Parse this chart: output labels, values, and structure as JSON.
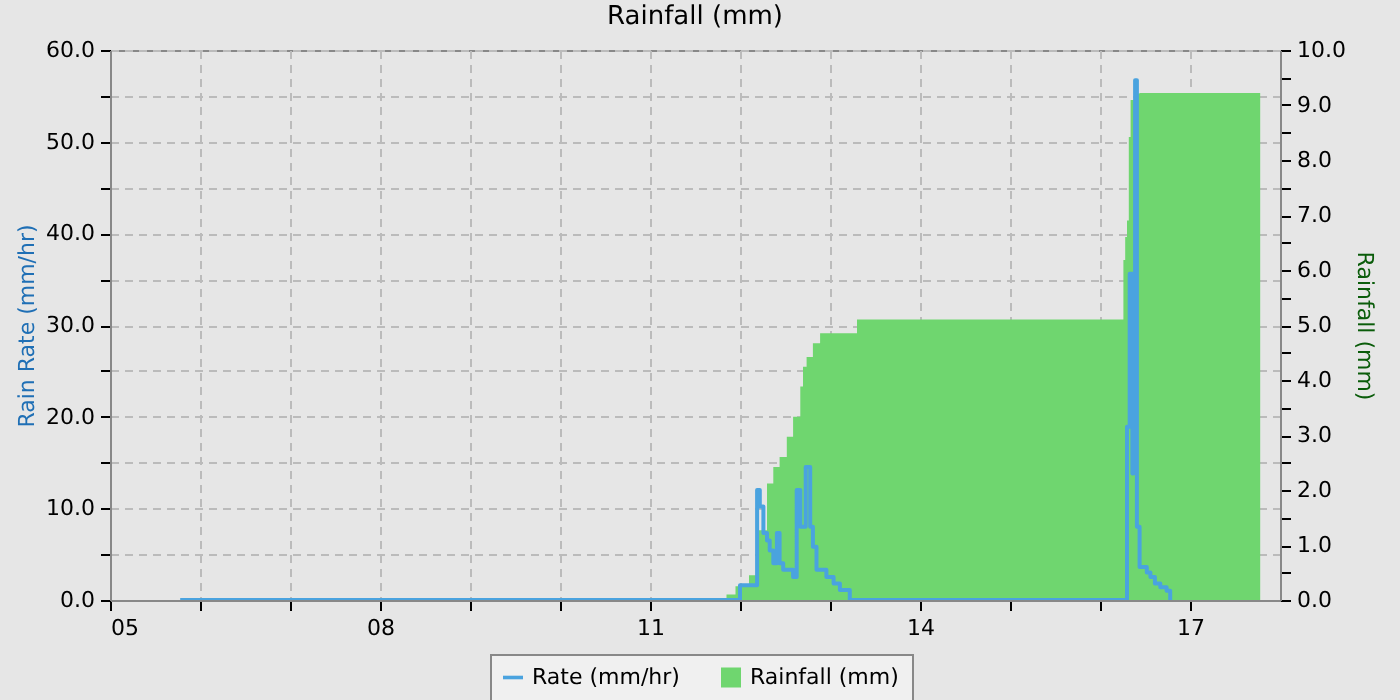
{
  "chart_data": {
    "type": "step",
    "title": "Rainfall (mm)",
    "ylabel": "Rain Rate (mm/hr)",
    "y2label": "Rainfall (mm)",
    "xlim": [
      5,
      18
    ],
    "xticks": [
      {
        "value": 5,
        "label": "05"
      },
      {
        "value": 6,
        "label": null
      },
      {
        "value": 7,
        "label": null
      },
      {
        "value": 8,
        "label": "08"
      },
      {
        "value": 9,
        "label": null
      },
      {
        "value": 10,
        "label": null
      },
      {
        "value": 11,
        "label": "11"
      },
      {
        "value": 12,
        "label": null
      },
      {
        "value": 13,
        "label": null
      },
      {
        "value": 14,
        "label": "14"
      },
      {
        "value": 15,
        "label": null
      },
      {
        "value": 16,
        "label": null
      },
      {
        "value": 17,
        "label": "17"
      }
    ],
    "ylim": [
      0,
      60
    ],
    "yticks": [
      {
        "value": 0,
        "label": "0.0"
      },
      {
        "value": 5,
        "label": null
      },
      {
        "value": 10,
        "label": "10.0"
      },
      {
        "value": 15,
        "label": null
      },
      {
        "value": 20,
        "label": "20.0"
      },
      {
        "value": 25,
        "label": null
      },
      {
        "value": 30,
        "label": "30.0"
      },
      {
        "value": 35,
        "label": null
      },
      {
        "value": 40,
        "label": "40.0"
      },
      {
        "value": 45,
        "label": null
      },
      {
        "value": 50,
        "label": "50.0"
      },
      {
        "value": 55,
        "label": null
      },
      {
        "value": 60,
        "label": "60.0"
      }
    ],
    "y2lim": [
      0,
      10
    ],
    "y2ticks": [
      {
        "value": 0,
        "label": "0.0"
      },
      {
        "value": 0.5,
        "label": null
      },
      {
        "value": 1,
        "label": "1.0"
      },
      {
        "value": 1.5,
        "label": null
      },
      {
        "value": 2,
        "label": "2.0"
      },
      {
        "value": 2.5,
        "label": null
      },
      {
        "value": 3,
        "label": "3.0"
      },
      {
        "value": 3.5,
        "label": null
      },
      {
        "value": 4,
        "label": "4.0"
      },
      {
        "value": 4.5,
        "label": null
      },
      {
        "value": 5,
        "label": "5.0"
      },
      {
        "value": 5.5,
        "label": null
      },
      {
        "value": 6,
        "label": "6.0"
      },
      {
        "value": 6.5,
        "label": null
      },
      {
        "value": 7,
        "label": "7.0"
      },
      {
        "value": 7.5,
        "label": null
      },
      {
        "value": 8,
        "label": "8.0"
      },
      {
        "value": 8.5,
        "label": null
      },
      {
        "value": 9,
        "label": "9.0"
      },
      {
        "value": 9.5,
        "label": null
      },
      {
        "value": 10,
        "label": "10.0"
      }
    ],
    "grid": true,
    "legend": "bottom",
    "series": [
      {
        "name": "Rate (mm/hr)",
        "color": "#4aa3df",
        "x": [
          5.78,
          12.0,
          12.19,
          12.22,
          12.26,
          12.3,
          12.33,
          12.37,
          12.41,
          12.44,
          12.48,
          12.59,
          12.63,
          12.67,
          12.73,
          12.78,
          12.81,
          12.85,
          12.96,
          13.04,
          13.11,
          13.22,
          16.3,
          16.33,
          16.36,
          16.37,
          16.39,
          16.41,
          16.44,
          16.52,
          16.56,
          16.61,
          16.67,
          16.74,
          16.78
        ],
        "values": [
          0,
          1.6,
          12.0,
          10.2,
          7.3,
          6.5,
          5.4,
          4.0,
          7.3,
          4.0,
          3.3,
          2.5,
          12.0,
          8.0,
          14.5,
          8.0,
          5.8,
          3.3,
          2.5,
          1.8,
          1.1,
          0,
          18.9,
          35.6,
          13.8,
          33.5,
          56.7,
          8.0,
          3.6,
          3.0,
          2.5,
          1.8,
          1.4,
          1.0,
          0
        ]
      },
      {
        "name": "Rainfall (mm)",
        "type": "area",
        "axis": "y2",
        "color": "#6fd66f",
        "x": [
          11.85,
          11.95,
          12.1,
          12.18,
          12.3,
          12.37,
          12.44,
          12.52,
          12.59,
          12.67,
          12.7,
          12.74,
          12.81,
          12.89,
          13.3,
          16.26,
          16.28,
          16.3,
          16.32,
          16.34,
          16.4,
          16.44,
          17.78
        ],
        "values": [
          0.1,
          0.25,
          0.45,
          1.27,
          2.12,
          2.42,
          2.6,
          2.97,
          3.33,
          3.88,
          4.24,
          4.42,
          4.67,
          4.85,
          5.1,
          6.18,
          6.6,
          6.9,
          8.42,
          9.09,
          9.21,
          9.22,
          9.22
        ]
      }
    ]
  }
}
